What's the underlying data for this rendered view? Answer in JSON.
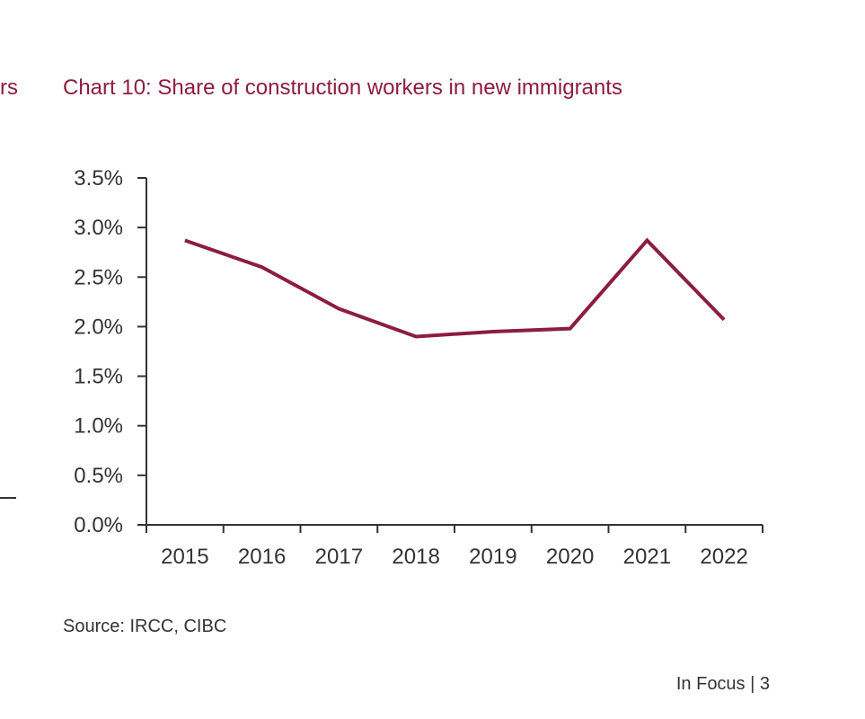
{
  "page": {
    "edge_fragment": "rs",
    "source": "Source: IRCC, CIBC",
    "footer": "In Focus | 3"
  },
  "colors": {
    "accent": "#8c1d3f",
    "text": "#333333",
    "axis": "#333333"
  },
  "chart_data": {
    "type": "line",
    "title": "Chart 10: Share of construction workers in new immigrants",
    "xlabel": "",
    "ylabel": "",
    "categories": [
      "2015",
      "2016",
      "2017",
      "2018",
      "2019",
      "2020",
      "2021",
      "2022"
    ],
    "series": [
      {
        "values": [
          2.87,
          2.6,
          2.18,
          1.9,
          1.95,
          1.98,
          2.87,
          2.07
        ]
      }
    ],
    "ylim": [
      0,
      3.5
    ],
    "yticks": [
      "0.0%",
      "0.5%",
      "1.0%",
      "1.5%",
      "2.0%",
      "2.5%",
      "3.0%",
      "3.5%"
    ],
    "ytick_values": [
      0,
      0.5,
      1.0,
      1.5,
      2.0,
      2.5,
      3.0,
      3.5
    ],
    "grid": false,
    "legend": "none"
  }
}
